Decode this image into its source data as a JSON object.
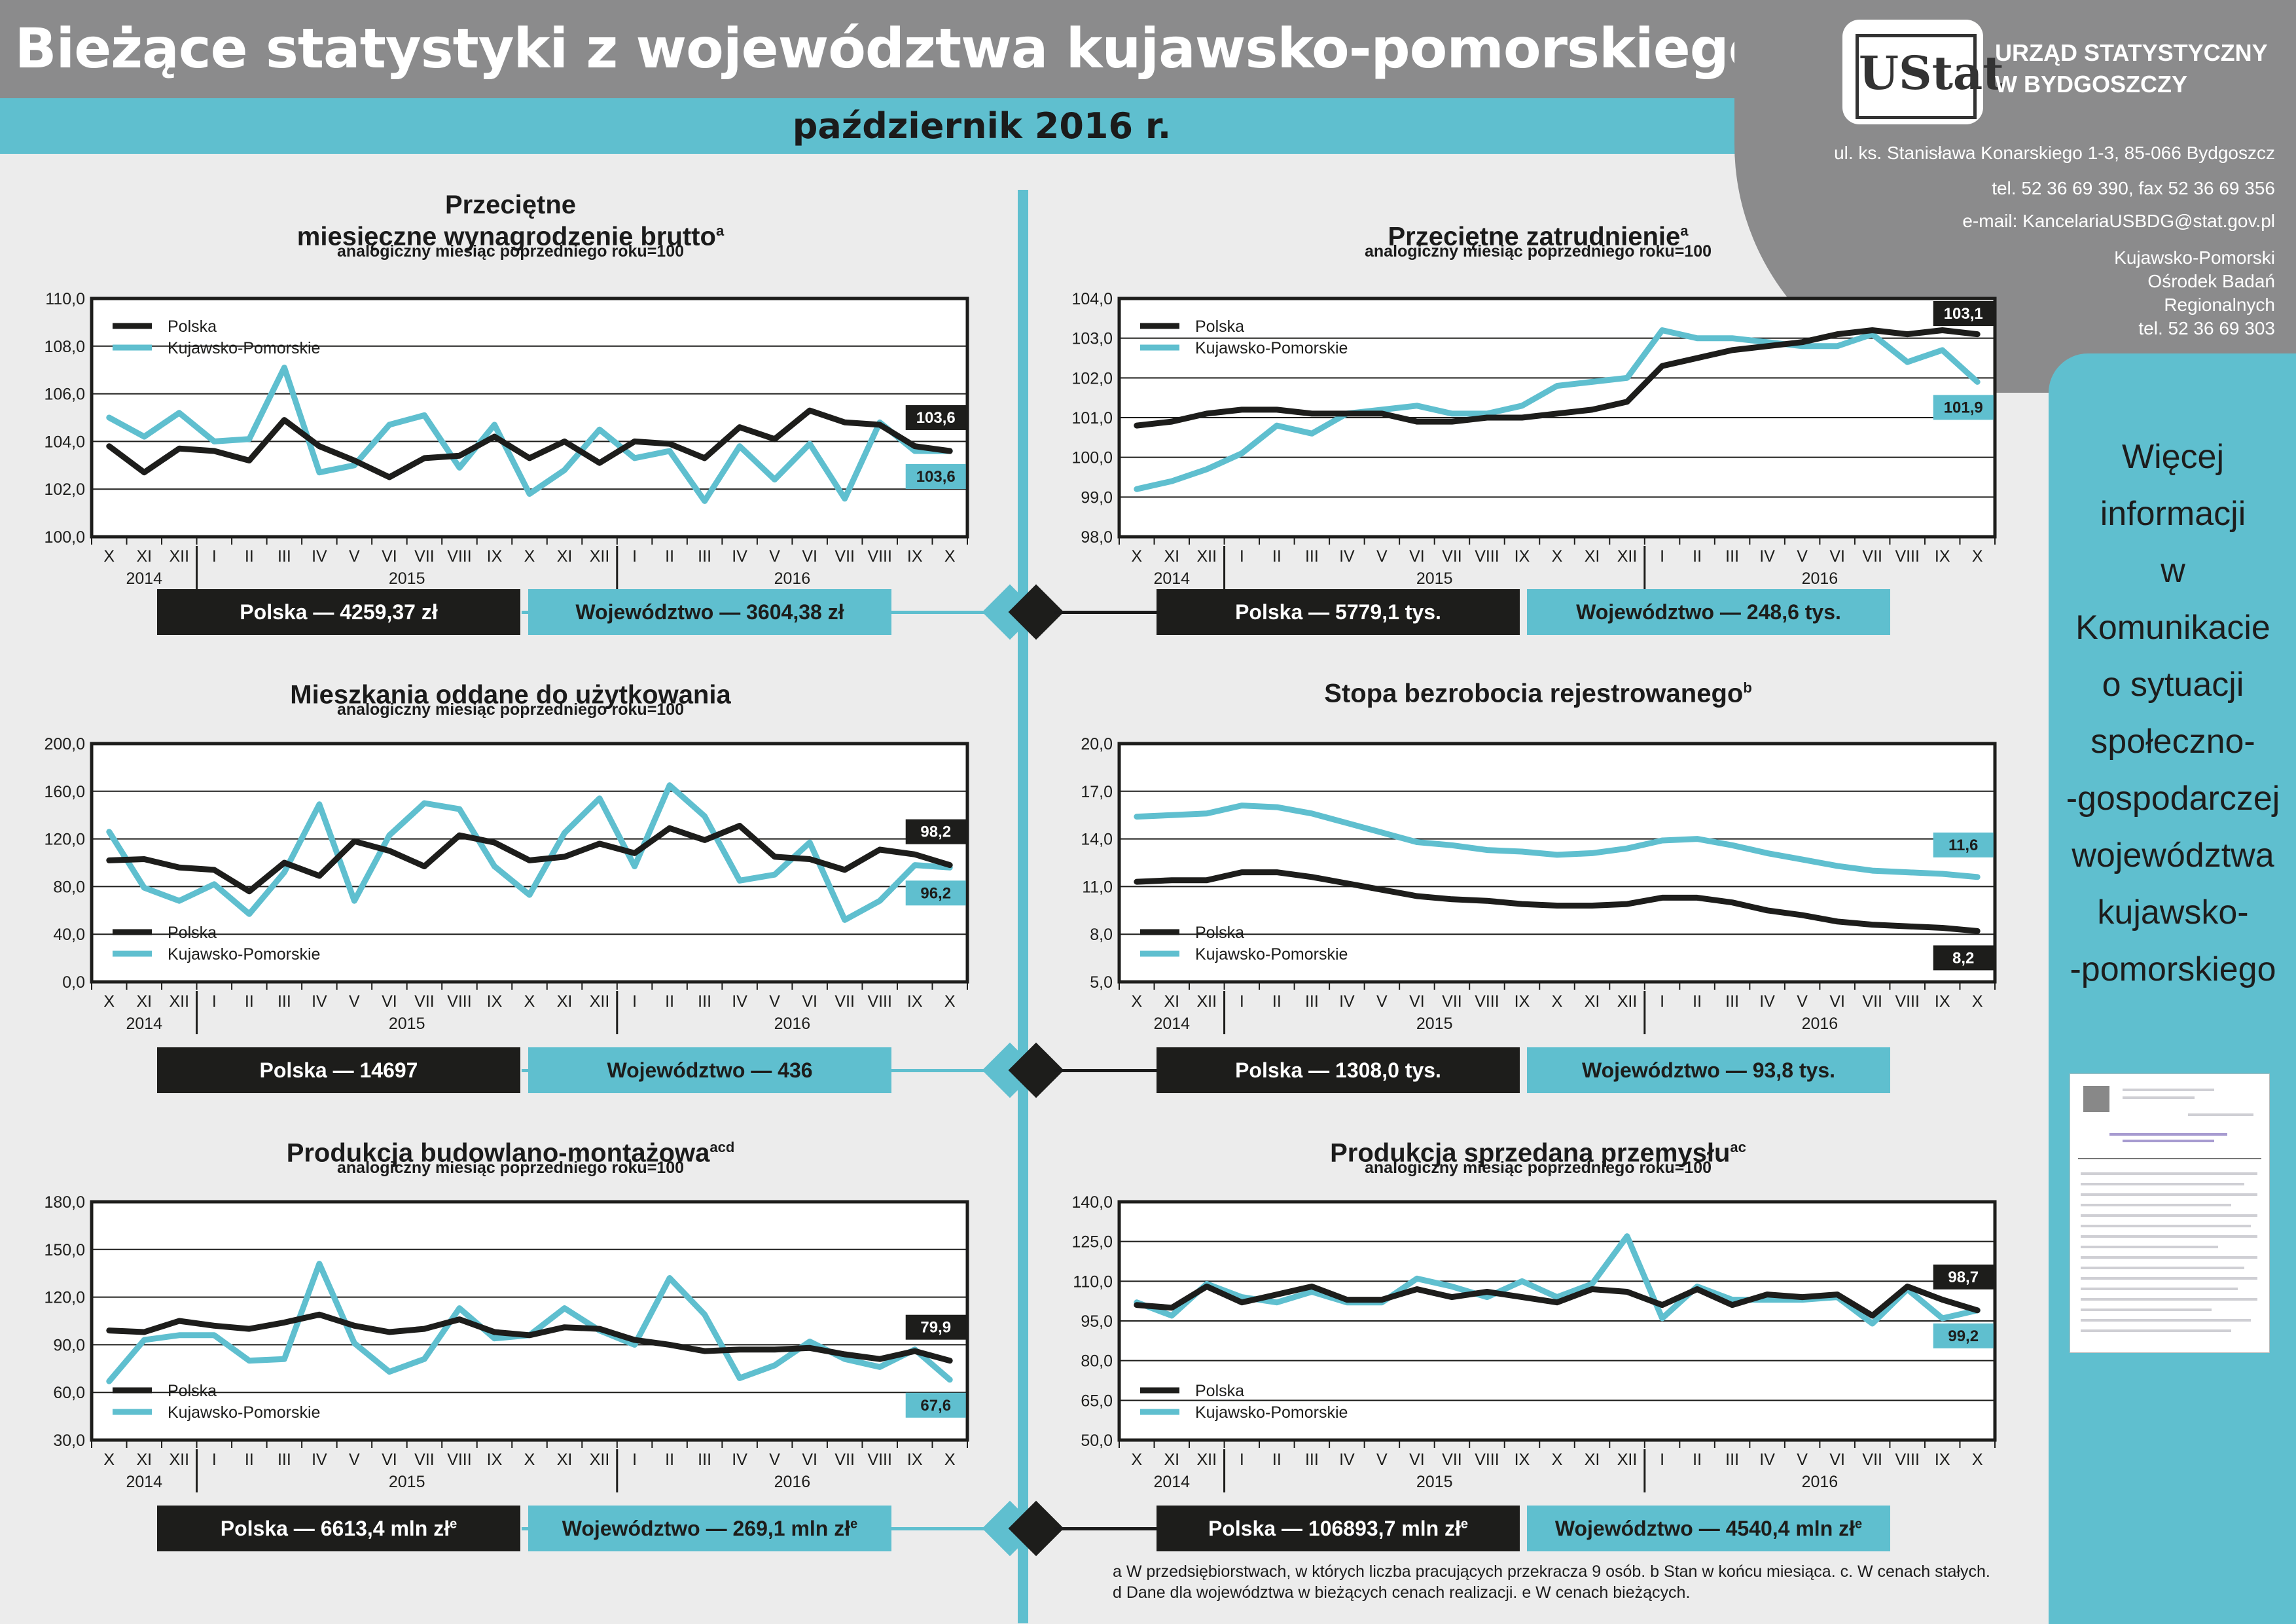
{
  "header": {
    "title": "Bieżące statystyki z województwa kujawsko-pomorskiego",
    "period": "październik 2016 r.",
    "logo_text": "UStat",
    "office_line1": "URZĄD STATYSTYCZNY",
    "office_line2": "W BYDGOSZCZY",
    "address": "ul. ks. Stanisława Konarskiego 1-3, 85-066 Bydgoszcz",
    "phone": "tel. 52 36 69 390, fax 52 36 69 356",
    "email": "e-mail: KancelariaUSBDG@stat.gov.pl",
    "center_line1": "Kujawsko-Pomorski",
    "center_line2": "Ośrodek Badań",
    "center_line3": "Regionalnych",
    "center_phone": "tel. 52 36 69 303"
  },
  "side_panel": {
    "lines": [
      "Więcej",
      "informacji",
      "w",
      "Komunikacie",
      "o sytuacji",
      "społeczno-",
      "-gospodarczej",
      "województwa",
      "kujawsko-",
      "-pomorskiego"
    ]
  },
  "colors": {
    "polska": "#1d1d1b",
    "region": "#5fbfcf",
    "background": "#ececec",
    "header_grey": "#8b8b8c"
  },
  "footnotes": {
    "line1": "a W przedsiębiorstwach, w których liczba pracujących przekracza 9 osób.  b Stan w końcu miesiąca.  c. W cenach stałych.",
    "line2": "d Dane dla województwa w bieżących cenach realizacji.  e W cenach bieżących."
  },
  "chart_data": [
    {
      "type": "line",
      "title_line1": "Przeciętne",
      "title_line2": "miesięczne wynagrodzenie brutto",
      "title_sup": "a",
      "subtitle": "analogiczny miesiąc poprzedniego roku=100",
      "x": [
        "X",
        "XI",
        "XII",
        "I",
        "II",
        "III",
        "IV",
        "V",
        "VI",
        "VII",
        "VIII",
        "IX",
        "X",
        "XI",
        "XII",
        "I",
        "II",
        "III",
        "IV",
        "V",
        "VI",
        "VII",
        "VIII",
        "IX",
        "X"
      ],
      "year_labels": [
        "2014",
        "2015",
        "2016"
      ],
      "yticks": [
        "110,0",
        "108,0",
        "106,0",
        "104,0",
        "102,0",
        "100,0"
      ],
      "ylim": [
        100,
        110
      ],
      "legend": [
        "Polska",
        "Kujawsko-Pomorskie"
      ],
      "series": [
        {
          "name": "Polska",
          "values": [
            103.8,
            102.7,
            103.7,
            103.6,
            103.2,
            104.9,
            103.8,
            103.2,
            102.5,
            103.3,
            103.4,
            104.2,
            103.3,
            104.0,
            103.1,
            104.0,
            103.9,
            103.3,
            104.6,
            104.1,
            105.3,
            104.8,
            104.7,
            103.8,
            103.6
          ]
        },
        {
          "name": "Kujawsko-Pomorskie",
          "values": [
            105.0,
            104.2,
            105.2,
            104.0,
            104.1,
            107.1,
            102.7,
            103.0,
            104.7,
            105.1,
            102.9,
            104.7,
            101.8,
            102.8,
            104.5,
            103.3,
            103.6,
            101.5,
            103.8,
            102.4,
            103.9,
            101.6,
            104.8,
            103.6,
            103.6
          ]
        }
      ],
      "end_labels": {
        "polska": "103,6",
        "region": "103,6"
      },
      "box_polska": "Polska — 4259,37 zł",
      "box_region": "Województwo — 3604,38 zł",
      "box_sup": ""
    },
    {
      "type": "line",
      "title_line1": "",
      "title_line2": "Przeciętne zatrudnienie",
      "title_sup": "a",
      "subtitle": "analogiczny miesiąc poprzedniego roku=100",
      "x": [
        "X",
        "XI",
        "XII",
        "I",
        "II",
        "III",
        "IV",
        "V",
        "VI",
        "VII",
        "VIII",
        "IX",
        "X",
        "XI",
        "XII",
        "I",
        "II",
        "III",
        "IV",
        "V",
        "VI",
        "VII",
        "VIII",
        "IX",
        "X"
      ],
      "year_labels": [
        "2014",
        "2015",
        "2016"
      ],
      "yticks": [
        "104,0",
        "103,0",
        "102,0",
        "101,0",
        "100,0",
        "99,0",
        "98,0"
      ],
      "ylim": [
        98,
        104
      ],
      "legend": [
        "Polska",
        "Kujawsko-Pomorskie"
      ],
      "series": [
        {
          "name": "Polska",
          "values": [
            100.8,
            100.9,
            101.1,
            101.2,
            101.2,
            101.1,
            101.1,
            101.1,
            100.9,
            100.9,
            101.0,
            101.0,
            101.1,
            101.2,
            101.4,
            102.3,
            102.5,
            102.7,
            102.8,
            102.9,
            103.1,
            103.2,
            103.1,
            103.2,
            103.1
          ]
        },
        {
          "name": "Kujawsko-Pomorskie",
          "values": [
            99.2,
            99.4,
            99.7,
            100.1,
            100.8,
            100.6,
            101.1,
            101.2,
            101.3,
            101.1,
            101.1,
            101.3,
            101.8,
            101.9,
            102.0,
            103.2,
            103.0,
            103.0,
            102.9,
            102.8,
            102.8,
            103.1,
            102.4,
            102.7,
            101.9
          ]
        }
      ],
      "end_labels": {
        "polska": "103,1",
        "region": "101,9"
      },
      "box_polska": "Polska — 5779,1 tys.",
      "box_region": "Województwo — 248,6 tys.",
      "box_sup": ""
    },
    {
      "type": "line",
      "title_line1": "",
      "title_line2": "Mieszkania oddane do użytkowania",
      "title_sup": "",
      "subtitle": "analogiczny miesiąc poprzedniego roku=100",
      "x": [
        "X",
        "XI",
        "XII",
        "I",
        "II",
        "III",
        "IV",
        "V",
        "VI",
        "VII",
        "VIII",
        "IX",
        "X",
        "XI",
        "XII",
        "I",
        "II",
        "III",
        "IV",
        "V",
        "VI",
        "VII",
        "VIII",
        "IX",
        "X"
      ],
      "year_labels": [
        "2014",
        "2015",
        "2016"
      ],
      "yticks": [
        "200,0",
        "160,0",
        "120,0",
        "80,0",
        "40,0",
        "0,0"
      ],
      "ylim": [
        0,
        200
      ],
      "legend": [
        "Polska",
        "Kujawsko-Pomorskie"
      ],
      "series": [
        {
          "name": "Polska",
          "values": [
            102,
            103,
            96,
            94,
            76,
            100,
            89,
            118,
            110,
            97,
            123,
            117,
            102,
            105,
            116,
            108,
            129,
            119,
            131,
            105,
            103,
            94,
            111,
            107,
            98
          ]
        },
        {
          "name": "Kujawsko-Pomorskie",
          "values": [
            126,
            79,
            68,
            82,
            57,
            92,
            149,
            68,
            123,
            150,
            145,
            97,
            73,
            125,
            154,
            97,
            165,
            139,
            85,
            90,
            117,
            52,
            68,
            98,
            96
          ]
        }
      ],
      "end_labels": {
        "polska": "98,2",
        "region": "96,2"
      },
      "box_polska": "Polska — 14697",
      "box_region": "Województwo — 436",
      "box_sup": ""
    },
    {
      "type": "line",
      "title_line1": "",
      "title_line2": "Stopa bezrobocia rejestrowanego",
      "title_sup": "b",
      "subtitle": "",
      "x": [
        "X",
        "XI",
        "XII",
        "I",
        "II",
        "III",
        "IV",
        "V",
        "VI",
        "VII",
        "VIII",
        "IX",
        "X",
        "XI",
        "XII",
        "I",
        "II",
        "III",
        "IV",
        "V",
        "VI",
        "VII",
        "VIII",
        "IX",
        "X"
      ],
      "year_labels": [
        "2014",
        "2015",
        "2016"
      ],
      "yticks": [
        "20,0",
        "17,0",
        "14,0",
        "11,0",
        "8,0",
        "5,0"
      ],
      "ylim": [
        5,
        20
      ],
      "legend": [
        "Polska",
        "Kujawsko-Pomorskie"
      ],
      "series": [
        {
          "name": "Polska",
          "values": [
            11.3,
            11.4,
            11.4,
            11.9,
            11.9,
            11.6,
            11.2,
            10.8,
            10.4,
            10.2,
            10.1,
            9.9,
            9.8,
            9.8,
            9.9,
            10.3,
            10.3,
            10.0,
            9.5,
            9.2,
            8.8,
            8.6,
            8.5,
            8.4,
            8.2
          ]
        },
        {
          "name": "Kujawsko-Pomorskie",
          "values": [
            15.4,
            15.5,
            15.6,
            16.1,
            16.0,
            15.6,
            15.0,
            14.4,
            13.8,
            13.6,
            13.3,
            13.2,
            13.0,
            13.1,
            13.4,
            13.9,
            14.0,
            13.6,
            13.1,
            12.7,
            12.3,
            12.0,
            11.9,
            11.8,
            11.6
          ]
        }
      ],
      "end_labels": {
        "polska": "8,2",
        "region": "11,6"
      },
      "box_polska": "Polska — 1308,0 tys.",
      "box_region": "Województwo — 93,8 tys.",
      "box_sup": ""
    },
    {
      "type": "line",
      "title_line1": "",
      "title_line2": "Produkcja budowlano-montażowa",
      "title_sup": "acd",
      "subtitle": "analogiczny miesiąc poprzedniego roku=100",
      "x": [
        "X",
        "XI",
        "XII",
        "I",
        "II",
        "III",
        "IV",
        "V",
        "VI",
        "VII",
        "VIII",
        "IX",
        "X",
        "XI",
        "XII",
        "I",
        "II",
        "III",
        "IV",
        "V",
        "VI",
        "VII",
        "VIII",
        "IX",
        "X"
      ],
      "year_labels": [
        "2014",
        "2015",
        "2016"
      ],
      "yticks": [
        "180,0",
        "150,0",
        "120,0",
        "90,0",
        "60,0",
        "30,0"
      ],
      "ylim": [
        30,
        180
      ],
      "legend": [
        "Polska",
        "Kujawsko-Pomorskie"
      ],
      "series": [
        {
          "name": "Polska",
          "values": [
            99,
            98,
            105,
            102,
            100,
            104,
            109,
            102,
            98,
            100,
            106,
            98,
            96,
            101,
            100,
            93,
            90,
            86,
            87,
            87,
            88,
            84,
            81,
            86,
            80
          ]
        },
        {
          "name": "Kujawsko-Pomorskie",
          "values": [
            67,
            93,
            96,
            96,
            80,
            81,
            141,
            91,
            73,
            81,
            113,
            94,
            96,
            113,
            99,
            90,
            132,
            109,
            69,
            77,
            92,
            81,
            76,
            87,
            68
          ]
        }
      ],
      "end_labels": {
        "polska": "79,9",
        "region": "67,6"
      },
      "box_polska": "Polska — 6613,4 mln zł",
      "box_region": "Województwo — 269,1 mln zł",
      "box_sup": "e"
    },
    {
      "type": "line",
      "title_line1": "",
      "title_line2": "Produkcja sprzedana przemysłu",
      "title_sup": "ac",
      "subtitle": "analogiczny miesiąc poprzedniego roku=100",
      "x": [
        "X",
        "XI",
        "XII",
        "I",
        "II",
        "III",
        "IV",
        "V",
        "VI",
        "VII",
        "VIII",
        "IX",
        "X",
        "XI",
        "XII",
        "I",
        "II",
        "III",
        "IV",
        "V",
        "VI",
        "VII",
        "VIII",
        "IX",
        "X"
      ],
      "year_labels": [
        "2014",
        "2015",
        "2016"
      ],
      "yticks": [
        "140,0",
        "125,0",
        "110,0",
        "95,0",
        "80,0",
        "65,0",
        "50,0"
      ],
      "ylim": [
        50,
        140
      ],
      "legend": [
        "Polska",
        "Kujawsko-Pomorskie"
      ],
      "series": [
        {
          "name": "Polska",
          "values": [
            101,
            100,
            108,
            102,
            105,
            108,
            103,
            103,
            107,
            104,
            106,
            104,
            102,
            107,
            106,
            101,
            107,
            101,
            105,
            104,
            105,
            97,
            108,
            103,
            99
          ]
        },
        {
          "name": "Kujawsko-Pomorskie",
          "values": [
            102,
            97,
            109,
            104,
            102,
            106,
            102,
            102,
            111,
            108,
            104,
            110,
            104,
            109,
            127,
            96,
            108,
            103,
            103,
            103,
            104,
            94,
            107,
            96,
            99
          ]
        }
      ],
      "end_labels": {
        "polska": "98,7",
        "region": "99,2"
      },
      "box_polska": "Polska — 106893,7 mln zł",
      "box_region": "Województwo — 4540,4 mln zł",
      "box_sup": "e"
    }
  ]
}
